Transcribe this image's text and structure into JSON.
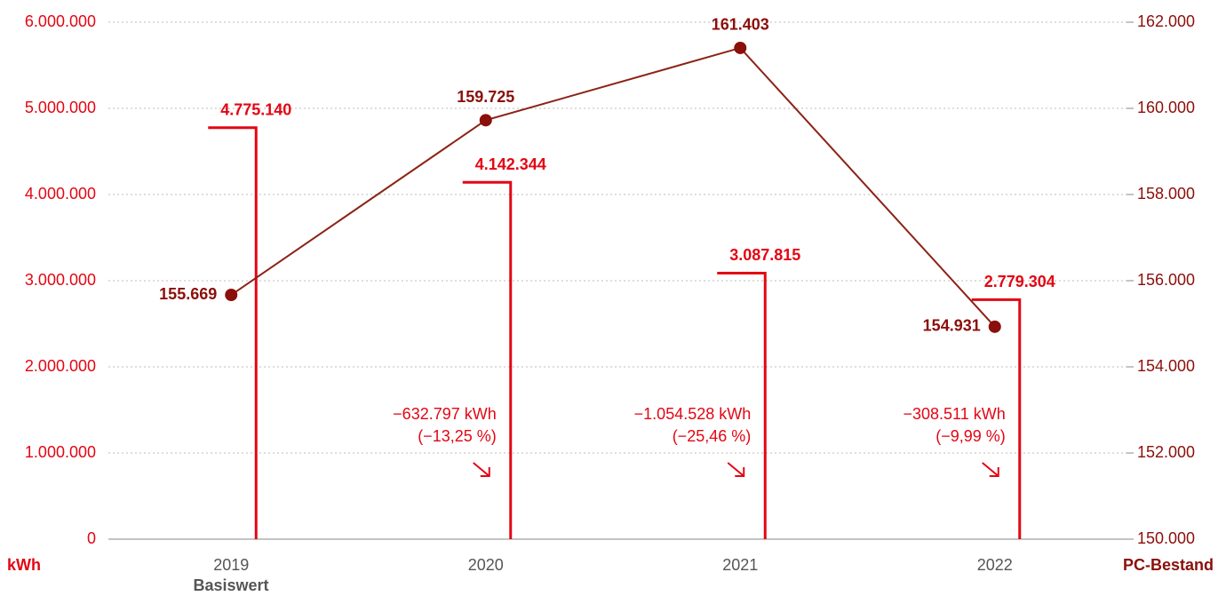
{
  "chart_data": {
    "type": "bar",
    "categories": [
      "2019",
      "2020",
      "2021",
      "2022"
    ],
    "x_sublabel": "Basiswert",
    "ylabel": "kWh",
    "y2label": "PC-Bestand",
    "series": [
      {
        "name": "kWh",
        "type": "bar",
        "color": "#e30613",
        "values": [
          4775140,
          4142344,
          3087815,
          2779304
        ],
        "value_labels": [
          "4.775.140",
          "4.142.344",
          "3.087.815",
          "2.779.304"
        ]
      },
      {
        "name": "PC-Bestand",
        "type": "line",
        "axis": "y2",
        "color": "#8c2216",
        "marker_color": "#8b0f0a",
        "values": [
          155669,
          159725,
          161403,
          154931
        ],
        "value_labels": [
          "155.669",
          "159.725",
          "161.403",
          "154.931"
        ]
      }
    ],
    "annotations": [
      {
        "text": "−632.797 kWh",
        "subtext": "(−13,25 %)"
      },
      {
        "text": "−1.054.528 kWh",
        "subtext": "(−25,46 %)"
      },
      {
        "text": "−308.511 kWh",
        "subtext": "(−9,99 %)"
      }
    ],
    "ylim": [
      0,
      6000000
    ],
    "yticks": [
      0,
      {
        "value": 1000000,
        "label": "1.000.000"
      },
      {
        "value": 2000000,
        "label": "2.000.000"
      },
      {
        "value": 3000000,
        "label": "3.000.000"
      },
      {
        "value": 4000000,
        "label": "4.000.000"
      },
      {
        "value": 5000000,
        "label": "5.000.000"
      },
      {
        "value": 6000000,
        "label": "6.000.000"
      }
    ],
    "y2lim": [
      150000,
      162000
    ],
    "y2ticks": [
      {
        "value": 150000,
        "label": "150.000"
      },
      {
        "value": 152000,
        "label": "152.000"
      },
      {
        "value": 154000,
        "label": "154.000"
      },
      {
        "value": 156000,
        "label": "156.000"
      },
      {
        "value": 158000,
        "label": "158.000"
      },
      {
        "value": 160000,
        "label": "160.000"
      },
      {
        "value": 162000,
        "label": "162.000"
      }
    ],
    "grid": true
  }
}
